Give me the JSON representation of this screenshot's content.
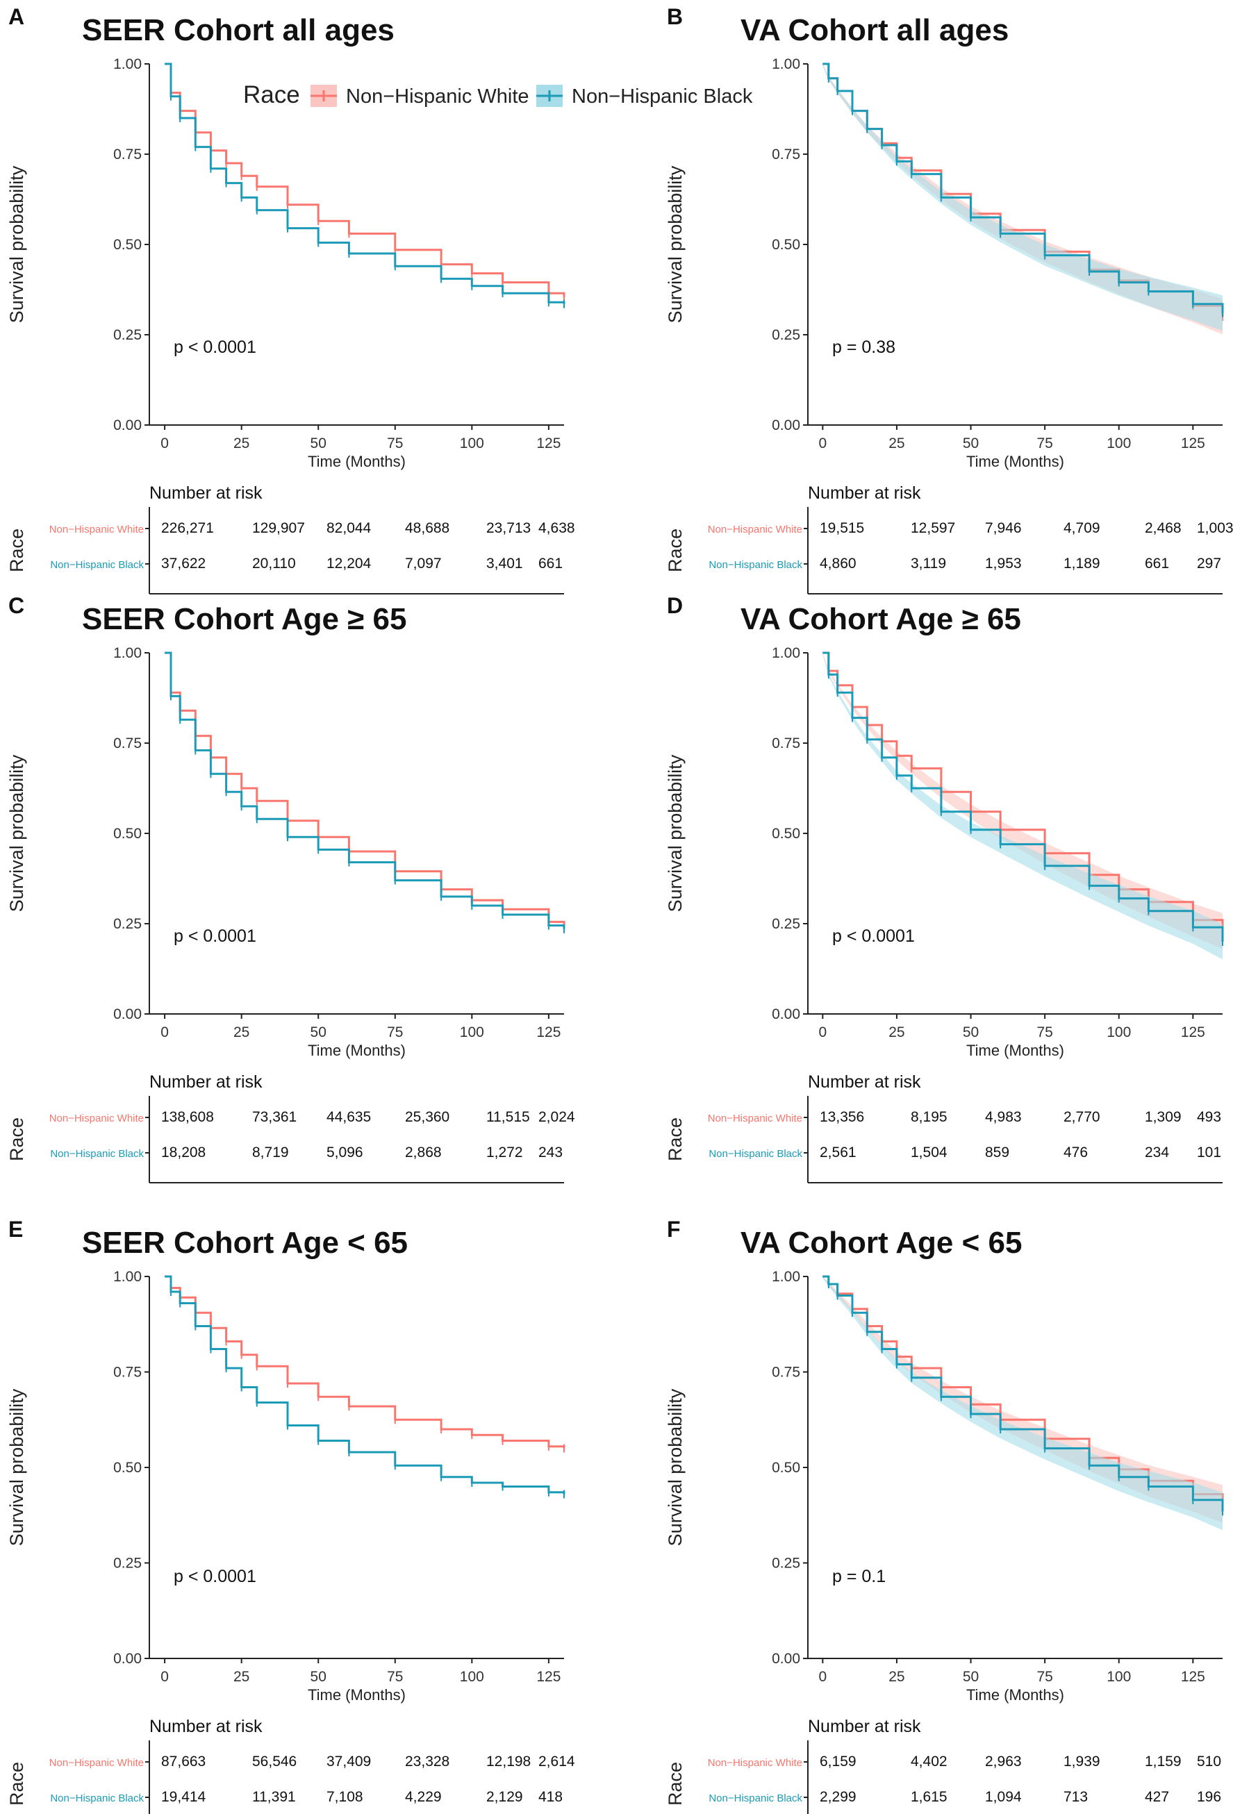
{
  "legend": {
    "title": "Race",
    "entries": [
      {
        "label": "Non−Hispanic White",
        "color": "#F8766D"
      },
      {
        "label": "Non−Hispanic Black",
        "color": "#00A5C2"
      }
    ]
  },
  "colors": {
    "white": "#F8766D",
    "black": "#1B9BB8",
    "band_white": "#FBC6C1",
    "band_black": "#A6DDE8",
    "axis": "#222222"
  },
  "common": {
    "ylabel": "Survival probability",
    "xlabel": "Time (Months)",
    "risk_title": "Number at risk",
    "risk_axis_label": "Race",
    "group_labels": [
      "Non−Hispanic White",
      "Non−Hispanic Black"
    ],
    "x_tick_labels": [
      "0",
      "25",
      "50",
      "75",
      "100",
      "125"
    ],
    "y_tick_labels": [
      "0.00",
      "0.25",
      "0.50",
      "0.75",
      "1.00"
    ]
  },
  "chart_data": [
    {
      "letter": "A",
      "title": "SEER Cohort all ages",
      "type": "line",
      "xlim": [
        -5,
        130
      ],
      "ylim": [
        0,
        1
      ],
      "pvalue": "p < 0.0001",
      "bands": false,
      "series": [
        {
          "name": "Non−Hispanic White",
          "x": [
            0,
            2,
            5,
            10,
            15,
            20,
            25,
            30,
            40,
            50,
            60,
            75,
            90,
            100,
            110,
            125,
            130
          ],
          "y": [
            1.0,
            0.92,
            0.87,
            0.81,
            0.76,
            0.725,
            0.69,
            0.66,
            0.61,
            0.565,
            0.53,
            0.485,
            0.445,
            0.42,
            0.395,
            0.365,
            0.355
          ]
        },
        {
          "name": "Non−Hispanic Black",
          "x": [
            0,
            2,
            5,
            10,
            15,
            20,
            25,
            30,
            40,
            50,
            60,
            75,
            90,
            100,
            110,
            125,
            130
          ],
          "y": [
            1.0,
            0.91,
            0.85,
            0.77,
            0.71,
            0.67,
            0.63,
            0.595,
            0.545,
            0.505,
            0.475,
            0.44,
            0.405,
            0.385,
            0.365,
            0.34,
            0.335
          ]
        }
      ],
      "risk": {
        "White": [
          "226,271",
          "129,907",
          "82,044",
          "48,688",
          "23,713",
          "4,638"
        ],
        "Black": [
          "37,622",
          "20,110",
          "12,204",
          "7,097",
          "3,401",
          "661"
        ]
      }
    },
    {
      "letter": "B",
      "title": "VA Cohort all ages",
      "type": "line",
      "xlim": [
        -5,
        135
      ],
      "ylim": [
        0,
        1
      ],
      "pvalue": "p = 0.38",
      "bands": true,
      "series": [
        {
          "name": "Non−Hispanic White",
          "x": [
            0,
            2,
            5,
            10,
            15,
            20,
            25,
            30,
            40,
            50,
            60,
            75,
            90,
            100,
            110,
            125,
            135
          ],
          "y": [
            1.0,
            0.96,
            0.925,
            0.87,
            0.82,
            0.78,
            0.74,
            0.705,
            0.64,
            0.585,
            0.54,
            0.48,
            0.43,
            0.4,
            0.37,
            0.33,
            0.3
          ]
        },
        {
          "name": "Non−Hispanic Black",
          "x": [
            0,
            2,
            5,
            10,
            15,
            20,
            25,
            30,
            40,
            50,
            60,
            75,
            90,
            100,
            110,
            125,
            135
          ],
          "y": [
            1.0,
            0.96,
            0.925,
            0.87,
            0.82,
            0.775,
            0.73,
            0.695,
            0.63,
            0.575,
            0.53,
            0.47,
            0.425,
            0.395,
            0.37,
            0.335,
            0.31
          ]
        }
      ],
      "risk": {
        "White": [
          "19,515",
          "12,597",
          "7,946",
          "4,709",
          "2,468",
          "1,003"
        ],
        "Black": [
          "4,860",
          "3,119",
          "1,953",
          "1,189",
          "661",
          "297"
        ]
      }
    },
    {
      "letter": "C",
      "title": "SEER Cohort Age ≥ 65",
      "type": "line",
      "xlim": [
        -5,
        130
      ],
      "ylim": [
        0,
        1
      ],
      "pvalue": "p < 0.0001",
      "bands": false,
      "series": [
        {
          "name": "Non−Hispanic White",
          "x": [
            0,
            2,
            5,
            10,
            15,
            20,
            25,
            30,
            40,
            50,
            60,
            75,
            90,
            100,
            110,
            125,
            130
          ],
          "y": [
            1.0,
            0.89,
            0.84,
            0.77,
            0.71,
            0.665,
            0.625,
            0.59,
            0.535,
            0.49,
            0.45,
            0.395,
            0.345,
            0.315,
            0.29,
            0.255,
            0.245
          ]
        },
        {
          "name": "Non−Hispanic Black",
          "x": [
            0,
            2,
            5,
            10,
            15,
            20,
            25,
            30,
            40,
            50,
            60,
            75,
            90,
            100,
            110,
            125,
            130
          ],
          "y": [
            1.0,
            0.88,
            0.815,
            0.73,
            0.665,
            0.615,
            0.575,
            0.54,
            0.49,
            0.455,
            0.42,
            0.37,
            0.325,
            0.3,
            0.275,
            0.245,
            0.235
          ]
        }
      ],
      "risk": {
        "White": [
          "138,608",
          "73,361",
          "44,635",
          "25,360",
          "11,515",
          "2,024"
        ],
        "Black": [
          "18,208",
          "8,719",
          "5,096",
          "2,868",
          "1,272",
          "243"
        ]
      }
    },
    {
      "letter": "D",
      "title": "VA Cohort Age ≥ 65",
      "type": "line",
      "xlim": [
        -5,
        135
      ],
      "ylim": [
        0,
        1
      ],
      "pvalue": "p < 0.0001",
      "bands": true,
      "series": [
        {
          "name": "Non−Hispanic White",
          "x": [
            0,
            2,
            5,
            10,
            15,
            20,
            25,
            30,
            40,
            50,
            60,
            75,
            90,
            100,
            110,
            125,
            135
          ],
          "y": [
            1.0,
            0.95,
            0.91,
            0.85,
            0.8,
            0.755,
            0.715,
            0.68,
            0.615,
            0.56,
            0.51,
            0.445,
            0.385,
            0.345,
            0.31,
            0.26,
            0.23
          ]
        },
        {
          "name": "Non−Hispanic Black",
          "x": [
            0,
            2,
            5,
            10,
            15,
            20,
            25,
            30,
            40,
            50,
            60,
            75,
            90,
            100,
            110,
            125,
            135
          ],
          "y": [
            1.0,
            0.94,
            0.89,
            0.82,
            0.76,
            0.71,
            0.66,
            0.625,
            0.56,
            0.51,
            0.47,
            0.41,
            0.355,
            0.32,
            0.285,
            0.24,
            0.2
          ]
        }
      ],
      "risk": {
        "White": [
          "13,356",
          "8,195",
          "4,983",
          "2,770",
          "1,309",
          "493"
        ],
        "Black": [
          "2,561",
          "1,504",
          "859",
          "476",
          "234",
          "101"
        ]
      }
    },
    {
      "letter": "E",
      "title": "SEER Cohort Age < 65",
      "type": "line",
      "xlim": [
        -5,
        130
      ],
      "ylim": [
        0,
        1
      ],
      "pvalue": "p < 0.0001",
      "bands": false,
      "series": [
        {
          "name": "Non−Hispanic White",
          "x": [
            0,
            2,
            5,
            10,
            15,
            20,
            25,
            30,
            40,
            50,
            60,
            75,
            90,
            100,
            110,
            125,
            130
          ],
          "y": [
            1.0,
            0.97,
            0.945,
            0.905,
            0.865,
            0.83,
            0.795,
            0.765,
            0.72,
            0.685,
            0.66,
            0.625,
            0.6,
            0.585,
            0.57,
            0.555,
            0.55
          ]
        },
        {
          "name": "Non−Hispanic Black",
          "x": [
            0,
            2,
            5,
            10,
            15,
            20,
            25,
            30,
            40,
            50,
            60,
            75,
            90,
            100,
            110,
            125,
            130
          ],
          "y": [
            1.0,
            0.96,
            0.93,
            0.87,
            0.81,
            0.76,
            0.71,
            0.67,
            0.61,
            0.57,
            0.54,
            0.505,
            0.475,
            0.46,
            0.45,
            0.435,
            0.43
          ]
        }
      ],
      "risk": {
        "White": [
          "87,663",
          "56,546",
          "37,409",
          "23,328",
          "12,198",
          "2,614"
        ],
        "Black": [
          "19,414",
          "11,391",
          "7,108",
          "4,229",
          "2,129",
          "418"
        ]
      }
    },
    {
      "letter": "F",
      "title": "VA Cohort Age < 65",
      "type": "line",
      "xlim": [
        -5,
        135
      ],
      "ylim": [
        0,
        1
      ],
      "pvalue": "p = 0.1",
      "bands": true,
      "series": [
        {
          "name": "Non−Hispanic White",
          "x": [
            0,
            2,
            5,
            10,
            15,
            20,
            25,
            30,
            40,
            50,
            60,
            75,
            90,
            100,
            110,
            125,
            135
          ],
          "y": [
            1.0,
            0.98,
            0.955,
            0.915,
            0.87,
            0.83,
            0.79,
            0.76,
            0.71,
            0.665,
            0.625,
            0.575,
            0.525,
            0.495,
            0.465,
            0.43,
            0.405
          ]
        },
        {
          "name": "Non−Hispanic Black",
          "x": [
            0,
            2,
            5,
            10,
            15,
            20,
            25,
            30,
            40,
            50,
            60,
            75,
            90,
            100,
            110,
            125,
            135
          ],
          "y": [
            1.0,
            0.98,
            0.95,
            0.905,
            0.855,
            0.81,
            0.77,
            0.735,
            0.685,
            0.64,
            0.6,
            0.55,
            0.505,
            0.475,
            0.45,
            0.415,
            0.385
          ]
        }
      ],
      "risk": {
        "White": [
          "6,159",
          "4,402",
          "2,963",
          "1,939",
          "1,159",
          "510"
        ],
        "Black": [
          "2,299",
          "1,615",
          "1,094",
          "713",
          "427",
          "196"
        ]
      }
    }
  ]
}
